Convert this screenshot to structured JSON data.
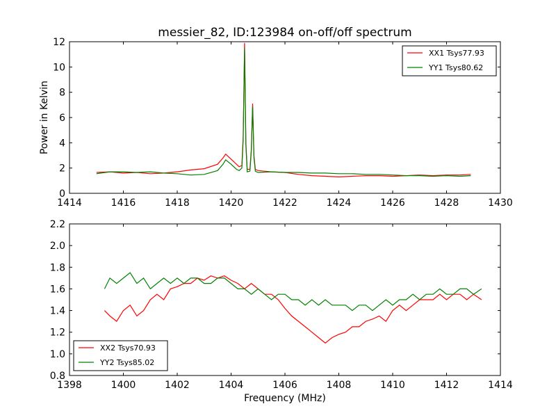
{
  "chart_data": [
    {
      "type": "line",
      "title": "messier_82, ID:123984 on-off/off spectrum",
      "xlabel": "",
      "ylabel": "Power in Kelvin",
      "xlim": [
        1414,
        1430
      ],
      "ylim": [
        0,
        12
      ],
      "xticks": [
        "1414",
        "1416",
        "1418",
        "1420",
        "1422",
        "1424",
        "1426",
        "1428",
        "1430"
      ],
      "yticks": [
        "0",
        "2",
        "4",
        "6",
        "8",
        "10",
        "12"
      ],
      "grid": false,
      "legend_position": "top-right",
      "colors": {
        "XX1 Tsys77.93": "#ff0000",
        "YY1 Tsys80.62": "#008000"
      },
      "x": [
        1415.0,
        1415.5,
        1416.0,
        1416.5,
        1417.0,
        1417.5,
        1418.0,
        1418.5,
        1419.0,
        1419.5,
        1419.7,
        1419.8,
        1420.0,
        1420.2,
        1420.3,
        1420.4,
        1420.45,
        1420.5,
        1420.55,
        1420.6,
        1420.7,
        1420.75,
        1420.8,
        1420.85,
        1420.9,
        1421.0,
        1421.5,
        1422.0,
        1422.5,
        1423.0,
        1423.5,
        1424.0,
        1424.5,
        1425.0,
        1425.5,
        1426.0,
        1426.5,
        1427.0,
        1427.5,
        1428.0,
        1428.5,
        1428.9
      ],
      "series": [
        {
          "name": "XX1 Tsys77.93",
          "values": [
            1.65,
            1.7,
            1.6,
            1.65,
            1.55,
            1.6,
            1.7,
            1.85,
            1.95,
            2.3,
            2.8,
            3.1,
            2.7,
            2.3,
            2.1,
            2.2,
            4.5,
            11.9,
            4.0,
            1.9,
            1.9,
            3.5,
            7.1,
            3.0,
            1.9,
            1.8,
            1.7,
            1.65,
            1.5,
            1.4,
            1.35,
            1.3,
            1.35,
            1.4,
            1.4,
            1.35,
            1.4,
            1.45,
            1.4,
            1.45,
            1.45,
            1.5
          ]
        },
        {
          "name": "YY1 Tsys80.62",
          "values": [
            1.55,
            1.7,
            1.7,
            1.65,
            1.7,
            1.6,
            1.55,
            1.45,
            1.5,
            1.8,
            2.3,
            2.65,
            2.3,
            1.9,
            1.8,
            2.0,
            4.2,
            11.5,
            3.8,
            1.7,
            1.75,
            3.3,
            6.9,
            2.8,
            1.75,
            1.65,
            1.7,
            1.65,
            1.65,
            1.6,
            1.6,
            1.55,
            1.55,
            1.5,
            1.5,
            1.45,
            1.4,
            1.4,
            1.35,
            1.4,
            1.35,
            1.4
          ]
        }
      ]
    },
    {
      "type": "line",
      "title": "",
      "xlabel": "Frequency (MHz)",
      "ylabel": "",
      "xlim": [
        1398,
        1414
      ],
      "ylim": [
        0.8,
        2.2
      ],
      "xticks": [
        "1398",
        "1400",
        "1402",
        "1404",
        "1406",
        "1408",
        "1410",
        "1412",
        "1414"
      ],
      "yticks": [
        "0.8",
        "1.0",
        "1.2",
        "1.4",
        "1.6",
        "1.8",
        "2.0",
        "2.2"
      ],
      "grid": false,
      "legend_position": "bottom-left",
      "colors": {
        "XX2 Tsys70.93": "#ff0000",
        "YY2 Tsys85.02": "#008000"
      },
      "x": [
        1399.3,
        1399.5,
        1399.75,
        1400.0,
        1400.25,
        1400.5,
        1400.75,
        1401.0,
        1401.25,
        1401.5,
        1401.75,
        1402.0,
        1402.25,
        1402.5,
        1402.75,
        1403.0,
        1403.25,
        1403.5,
        1403.75,
        1404.0,
        1404.25,
        1404.5,
        1404.75,
        1405.0,
        1405.25,
        1405.5,
        1405.75,
        1406.0,
        1406.25,
        1406.5,
        1406.75,
        1407.0,
        1407.25,
        1407.5,
        1407.75,
        1408.0,
        1408.25,
        1408.5,
        1408.75,
        1409.0,
        1409.25,
        1409.5,
        1409.75,
        1410.0,
        1410.25,
        1410.5,
        1410.75,
        1411.0,
        1411.25,
        1411.5,
        1411.75,
        1412.0,
        1412.25,
        1412.5,
        1412.75,
        1413.0,
        1413.3
      ],
      "series": [
        {
          "name": "XX2 Tsys70.93",
          "values": [
            1.4,
            1.35,
            1.3,
            1.4,
            1.45,
            1.35,
            1.4,
            1.5,
            1.55,
            1.5,
            1.6,
            1.62,
            1.65,
            1.65,
            1.7,
            1.68,
            1.72,
            1.7,
            1.72,
            1.68,
            1.65,
            1.6,
            1.65,
            1.6,
            1.55,
            1.55,
            1.5,
            1.42,
            1.35,
            1.3,
            1.25,
            1.2,
            1.15,
            1.1,
            1.15,
            1.18,
            1.2,
            1.25,
            1.25,
            1.3,
            1.32,
            1.35,
            1.3,
            1.4,
            1.45,
            1.4,
            1.45,
            1.5,
            1.5,
            1.5,
            1.55,
            1.5,
            1.55,
            1.55,
            1.5,
            1.55,
            1.5
          ]
        },
        {
          "name": "YY2 Tsys85.02",
          "values": [
            1.6,
            1.7,
            1.65,
            1.7,
            1.75,
            1.65,
            1.7,
            1.6,
            1.65,
            1.7,
            1.65,
            1.7,
            1.65,
            1.7,
            1.7,
            1.65,
            1.65,
            1.7,
            1.7,
            1.65,
            1.6,
            1.6,
            1.55,
            1.6,
            1.55,
            1.5,
            1.55,
            1.55,
            1.5,
            1.5,
            1.45,
            1.5,
            1.45,
            1.5,
            1.45,
            1.45,
            1.45,
            1.4,
            1.45,
            1.45,
            1.4,
            1.45,
            1.5,
            1.45,
            1.5,
            1.5,
            1.55,
            1.5,
            1.55,
            1.55,
            1.6,
            1.55,
            1.55,
            1.6,
            1.6,
            1.55,
            1.6
          ]
        }
      ]
    }
  ]
}
